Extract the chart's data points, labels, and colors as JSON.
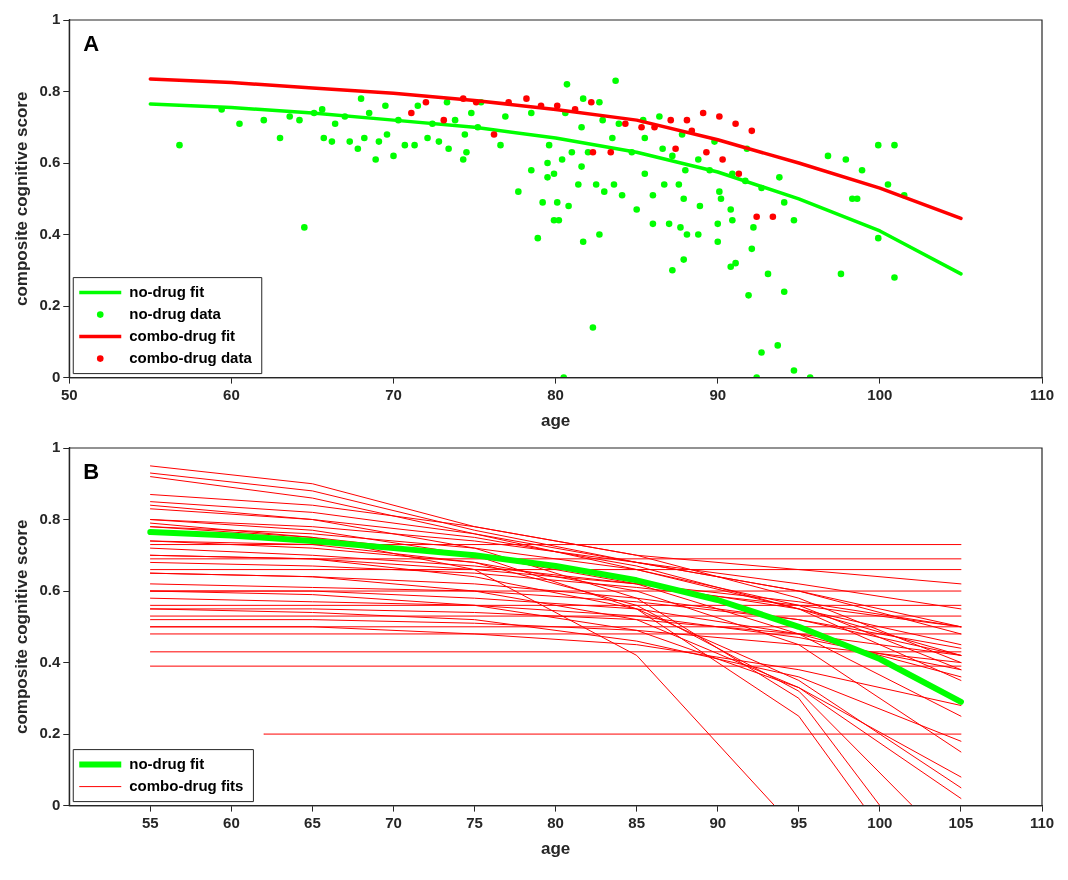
{
  "chart_data": [
    {
      "type": "line",
      "xlabel": "age",
      "ylabel": "composite cognitive score",
      "annotations": [
        "A"
      ],
      "xlim": [
        50,
        110
      ],
      "xticks": [
        50,
        60,
        70,
        80,
        90,
        100,
        110
      ],
      "ylim": [
        0,
        1
      ],
      "yticks": [
        0,
        0.2,
        0.4,
        0.6,
        0.8,
        1
      ],
      "legend": "bottom left",
      "series": [
        {
          "name": "no-drug fit",
          "color": "#00ff00",
          "marker": "none",
          "line_style": "solid",
          "x": [
            55,
            60,
            65,
            70,
            75,
            80,
            85,
            90,
            95,
            100,
            105
          ],
          "values": [
            0.765,
            0.755,
            0.74,
            0.72,
            0.7,
            0.67,
            0.63,
            0.575,
            0.5,
            0.41,
            0.29
          ]
        },
        {
          "name": "no-drug data",
          "type": "scatter",
          "color": "#00ff00",
          "marker": "circle",
          "x": [
            80.7,
            83.7,
            81.7,
            82.7,
            77.7,
            79.2,
            80.1,
            80.8,
            79.9,
            80.2,
            78.9,
            81.7,
            82.7,
            82.3,
            78.5,
            79.5,
            79.9,
            81.4,
            82.5,
            83.0,
            83.6,
            84.1,
            85.0,
            86.0,
            86.0,
            87.0,
            87.7,
            88.1,
            88.8,
            87.2,
            87.9,
            90.0,
            90.8,
            91.1,
            91.9,
            92.1,
            92.2,
            93.1,
            94.1,
            92.7,
            93.7,
            94.7,
            92.4,
            95.7,
            80.5,
            96.8,
            97.9,
            98.9,
            99.9,
            100.9,
            100.5,
            101.5,
            98.3,
            98.6,
            97.6,
            100.9,
            99.9,
            94.7,
            93.8,
            94.1,
            92.7,
            91.7,
            91.8,
            89.8,
            87.8,
            86.4,
            85.4,
            83.9,
            82.9,
            81.6,
            80.6,
            78.5,
            76.9,
            75.4,
            75.2,
            76.6,
            79.6,
            81.0,
            83.5,
            85.5,
            87.2,
            88.8,
            89.5,
            90.9,
            88.0,
            86.6,
            84.7,
            82.0,
            80.4,
            79.5,
            81.6,
            85.5,
            86.7,
            87.6,
            90.1,
            90.2,
            90.8,
            90.9,
            90.0,
            88.9,
            87.9,
            56.8,
            60.5,
            62.0,
            63.0,
            63.6,
            64.2,
            64.5,
            59.4,
            65.1,
            65.6,
            65.7,
            66.2,
            66.4,
            67.0,
            67.3,
            67.8,
            68.0,
            68.2,
            68.5,
            68.9,
            69.1,
            69.5,
            69.6,
            70.0,
            70.3,
            70.7,
            71.3,
            71.5,
            72.1,
            72.4,
            72.8,
            73.4,
            73.3,
            73.8,
            74.3,
            74.4,
            74.5,
            74.8
          ],
          "values": [
            0.82,
            0.83,
            0.78,
            0.77,
            0.52,
            0.49,
            0.49,
            0.48,
            0.44,
            0.44,
            0.39,
            0.38,
            0.4,
            0.14,
            0.58,
            0.56,
            0.57,
            0.54,
            0.54,
            0.52,
            0.54,
            0.51,
            0.47,
            0.51,
            0.43,
            0.43,
            0.42,
            0.4,
            0.4,
            0.3,
            0.33,
            0.38,
            0.31,
            0.32,
            0.23,
            0.36,
            0.42,
            0.29,
            0.24,
            0.07,
            0.09,
            0.02,
            0,
            0,
            0,
            0.62,
            0.61,
            0.58,
            0.65,
            0.65,
            0.54,
            0.51,
            0.5,
            0.5,
            0.29,
            0.28,
            0.39,
            0.44,
            0.56,
            0.49,
            0.53,
            0.55,
            0.64,
            0.66,
            0.68,
            0.73,
            0.72,
            0.71,
            0.72,
            0.7,
            0.74,
            0.74,
            0.73,
            0.77,
            0.7,
            0.65,
            0.65,
            0.63,
            0.67,
            0.67,
            0.62,
            0.61,
            0.58,
            0.57,
            0.58,
            0.64,
            0.63,
            0.63,
            0.61,
            0.6,
            0.59,
            0.57,
            0.54,
            0.54,
            0.52,
            0.5,
            0.47,
            0.44,
            0.43,
            0.48,
            0.5,
            0.65,
            0.71,
            0.72,
            0.67,
            0.73,
            0.72,
            0.42,
            0.75,
            0.74,
            0.75,
            0.67,
            0.66,
            0.71,
            0.73,
            0.66,
            0.64,
            0.78,
            0.67,
            0.74,
            0.61,
            0.66,
            0.76,
            0.68,
            0.62,
            0.72,
            0.65,
            0.65,
            0.76,
            0.67,
            0.71,
            0.66,
            0.64,
            0.77,
            0.72,
            0.61,
            0.68,
            0.63,
            0.74
          ]
        },
        {
          "name": "combo-drug fit",
          "color": "#ff0000",
          "marker": "none",
          "line_style": "solid",
          "x": [
            55,
            60,
            65,
            70,
            75,
            80,
            85,
            90,
            95,
            100,
            105
          ],
          "values": [
            0.835,
            0.825,
            0.81,
            0.795,
            0.775,
            0.75,
            0.72,
            0.665,
            0.6,
            0.53,
            0.445
          ]
        },
        {
          "name": "combo-drug data",
          "type": "scatter",
          "color": "#ff0000",
          "marker": "circle",
          "x": [
            75.1,
            77.1,
            78.2,
            79.1,
            80.1,
            81.2,
            82.2,
            76.2,
            82.3,
            83.4,
            84.3,
            85.3,
            86.1,
            87.1,
            88.1,
            88.4,
            87.4,
            89.1,
            90.1,
            91.1,
            92.1,
            89.3,
            90.3,
            91.3,
            92.4,
            93.4,
            71.1,
            73.1,
            72.0,
            74.3
          ],
          "values": [
            0.77,
            0.77,
            0.78,
            0.76,
            0.76,
            0.75,
            0.77,
            0.68,
            0.63,
            0.63,
            0.71,
            0.7,
            0.7,
            0.72,
            0.72,
            0.69,
            0.64,
            0.74,
            0.73,
            0.71,
            0.69,
            0.63,
            0.61,
            0.57,
            0.45,
            0.45,
            0.74,
            0.72,
            0.77,
            0.78
          ]
        }
      ]
    },
    {
      "type": "line",
      "xlabel": "age",
      "ylabel": "composite cognitive score",
      "annotations": [
        "B"
      ],
      "xlim": [
        50,
        110
      ],
      "xticks": [
        55,
        60,
        65,
        70,
        75,
        80,
        85,
        90,
        95,
        100,
        105,
        110
      ],
      "ylim": [
        0,
        1
      ],
      "yticks": [
        0,
        0.2,
        0.4,
        0.6,
        0.8,
        1
      ],
      "legend": "bottom left",
      "series": [
        {
          "name": "no-drug fit",
          "color": "#00ff00",
          "marker": "none",
          "line_style": "solid",
          "x": [
            55,
            60,
            65,
            70,
            75,
            80,
            85,
            90,
            95,
            100,
            105
          ],
          "values": [
            0.765,
            0.755,
            0.74,
            0.72,
            0.7,
            0.67,
            0.63,
            0.575,
            0.5,
            0.41,
            0.29
          ]
        },
        {
          "name": "combo-drug fits",
          "color": "#ff0000",
          "marker": "none",
          "line_style": "solid",
          "x": [
            55,
            65,
            75,
            85,
            95,
            105
          ],
          "values": [
            0.87,
            0.84,
            0.78,
            0.7,
            0.58,
            0.4
          ]
        },
        {
          "color": "#ff0000",
          "marker": "none",
          "line_style": "solid",
          "x": [
            55,
            105
          ],
          "values": [
            0.73,
            0.73
          ]
        },
        {
          "color": "#ff0000",
          "marker": "none",
          "line_style": "solid",
          "x": [
            55,
            105
          ],
          "values": [
            0.69,
            0.69
          ]
        },
        {
          "color": "#ff0000",
          "marker": "none",
          "line_style": "solid",
          "x": [
            55,
            105
          ],
          "values": [
            0.66,
            0.66
          ]
        },
        {
          "color": "#ff0000",
          "marker": "none",
          "line_style": "solid",
          "x": [
            55,
            105
          ],
          "values": [
            0.6,
            0.6
          ]
        },
        {
          "color": "#ff0000",
          "marker": "none",
          "line_style": "solid",
          "x": [
            55,
            105
          ],
          "values": [
            0.56,
            0.56
          ]
        },
        {
          "color": "#ff0000",
          "marker": "none",
          "line_style": "solid",
          "x": [
            55,
            105
          ],
          "values": [
            0.53,
            0.53
          ]
        },
        {
          "color": "#ff0000",
          "marker": "none",
          "line_style": "solid",
          "x": [
            55,
            105
          ],
          "values": [
            0.5,
            0.5
          ]
        },
        {
          "color": "#ff0000",
          "marker": "none",
          "line_style": "solid",
          "x": [
            55,
            105
          ],
          "values": [
            0.48,
            0.48
          ]
        },
        {
          "color": "#ff0000",
          "marker": "none",
          "line_style": "solid",
          "x": [
            55,
            105
          ],
          "values": [
            0.43,
            0.43
          ]
        },
        {
          "color": "#ff0000",
          "marker": "none",
          "line_style": "solid",
          "x": [
            55,
            105
          ],
          "values": [
            0.39,
            0.39
          ]
        },
        {
          "color": "#ff0000",
          "marker": "none",
          "line_style": "solid",
          "x": [
            62,
            105
          ],
          "values": [
            0.2,
            0.2
          ]
        },
        {
          "color": "#ff0000",
          "marker": "none",
          "line_style": "solid",
          "x": [
            55,
            65,
            75,
            85,
            95,
            105
          ],
          "values": [
            0.95,
            0.9,
            0.78,
            0.7,
            0.66,
            0.62
          ]
        },
        {
          "color": "#ff0000",
          "marker": "none",
          "line_style": "solid",
          "x": [
            55,
            65,
            75,
            85,
            95,
            105
          ],
          "values": [
            0.93,
            0.88,
            0.77,
            0.68,
            0.6,
            0.5
          ]
        },
        {
          "color": "#ff0000",
          "marker": "none",
          "line_style": "solid",
          "x": [
            55,
            65,
            75,
            85,
            95,
            105
          ],
          "values": [
            0.92,
            0.86,
            0.76,
            0.66,
            0.55,
            0.42
          ]
        },
        {
          "color": "#ff0000",
          "marker": "none",
          "line_style": "solid",
          "x": [
            55,
            65,
            75,
            85,
            95,
            105
          ],
          "values": [
            0.85,
            0.82,
            0.76,
            0.68,
            0.6,
            0.48
          ]
        },
        {
          "color": "#ff0000",
          "marker": "none",
          "line_style": "solid",
          "x": [
            55,
            65,
            75,
            85,
            95,
            105
          ],
          "values": [
            0.83,
            0.8,
            0.75,
            0.67,
            0.55,
            0.35
          ]
        },
        {
          "color": "#ff0000",
          "marker": "none",
          "line_style": "solid",
          "x": [
            55,
            65,
            75,
            85,
            95,
            105
          ],
          "values": [
            0.8,
            0.78,
            0.74,
            0.68,
            0.62,
            0.55
          ]
        },
        {
          "color": "#ff0000",
          "marker": "none",
          "line_style": "solid",
          "x": [
            55,
            65,
            75,
            85,
            95,
            105
          ],
          "values": [
            0.78,
            0.76,
            0.72,
            0.66,
            0.56,
            0.38
          ]
        },
        {
          "color": "#ff0000",
          "marker": "none",
          "line_style": "solid",
          "x": [
            55,
            65,
            75,
            85,
            95,
            105
          ],
          "values": [
            0.79,
            0.75,
            0.7,
            0.62,
            0.48,
            0.25
          ]
        },
        {
          "color": "#ff0000",
          "marker": "none",
          "line_style": "solid",
          "x": [
            55,
            65,
            75,
            85,
            95,
            105
          ],
          "values": [
            0.74,
            0.72,
            0.68,
            0.6,
            0.45,
            0.15
          ]
        },
        {
          "color": "#ff0000",
          "marker": "none",
          "line_style": "solid",
          "x": [
            55,
            65,
            75,
            85,
            95,
            105
          ],
          "values": [
            0.72,
            0.7,
            0.67,
            0.62,
            0.55,
            0.45
          ]
        },
        {
          "color": "#ff0000",
          "marker": "none",
          "line_style": "solid",
          "x": [
            55,
            65,
            75,
            85,
            95,
            105
          ],
          "values": [
            0.7,
            0.69,
            0.66,
            0.62,
            0.57,
            0.5
          ]
        },
        {
          "color": "#ff0000",
          "marker": "none",
          "line_style": "solid",
          "x": [
            55,
            65,
            75,
            85,
            95,
            105
          ],
          "values": [
            0.68,
            0.67,
            0.65,
            0.61,
            0.56,
            0.5
          ]
        },
        {
          "color": "#ff0000",
          "marker": "none",
          "line_style": "solid",
          "x": [
            55,
            65,
            75,
            85,
            95,
            105
          ],
          "values": [
            0.65,
            0.64,
            0.62,
            0.58,
            0.52,
            0.42
          ]
        },
        {
          "color": "#ff0000",
          "marker": "none",
          "line_style": "solid",
          "x": [
            55,
            65,
            75,
            85,
            95,
            105
          ],
          "values": [
            0.62,
            0.61,
            0.6,
            0.57,
            0.52,
            0.44
          ]
        },
        {
          "color": "#ff0000",
          "marker": "none",
          "line_style": "solid",
          "x": [
            55,
            65,
            75,
            85,
            95,
            105
          ],
          "values": [
            0.6,
            0.6,
            0.58,
            0.55,
            0.48,
            0.36
          ]
        },
        {
          "color": "#ff0000",
          "marker": "none",
          "line_style": "solid",
          "x": [
            55,
            65,
            75,
            85,
            95,
            105
          ],
          "values": [
            0.58,
            0.57,
            0.56,
            0.53,
            0.47,
            0.38
          ]
        },
        {
          "color": "#ff0000",
          "marker": "none",
          "line_style": "solid",
          "x": [
            55,
            65,
            75,
            85,
            95,
            105
          ],
          "values": [
            0.55,
            0.55,
            0.54,
            0.52,
            0.48,
            0.42
          ]
        },
        {
          "color": "#ff0000",
          "marker": "none",
          "line_style": "solid",
          "x": [
            55,
            65,
            75,
            85,
            95,
            105
          ],
          "values": [
            0.52,
            0.52,
            0.51,
            0.49,
            0.45,
            0.4
          ]
        },
        {
          "color": "#ff0000",
          "marker": "none",
          "line_style": "solid",
          "x": [
            55,
            65,
            75,
            85,
            93.5
          ],
          "values": [
            0.78,
            0.75,
            0.66,
            0.42,
            0
          ]
        },
        {
          "color": "#ff0000",
          "marker": "none",
          "line_style": "solid",
          "x": [
            55,
            65,
            75,
            85,
            95,
            99
          ],
          "values": [
            0.8,
            0.77,
            0.7,
            0.55,
            0.25,
            0
          ]
        },
        {
          "color": "#ff0000",
          "marker": "none",
          "line_style": "solid",
          "x": [
            55,
            65,
            75,
            85,
            95,
            102
          ],
          "values": [
            0.74,
            0.73,
            0.68,
            0.56,
            0.32,
            0
          ]
        },
        {
          "color": "#ff0000",
          "marker": "none",
          "line_style": "solid",
          "x": [
            55,
            65,
            75,
            85,
            95,
            100
          ],
          "values": [
            0.84,
            0.8,
            0.72,
            0.58,
            0.3,
            0
          ]
        },
        {
          "color": "#ff0000",
          "marker": "none",
          "line_style": "solid",
          "x": [
            55,
            65,
            75,
            85,
            95,
            105
          ],
          "values": [
            0.7,
            0.69,
            0.64,
            0.55,
            0.35,
            0.05
          ]
        },
        {
          "color": "#ff0000",
          "marker": "none",
          "line_style": "solid",
          "x": [
            55,
            65,
            75,
            85,
            95,
            105
          ],
          "values": [
            0.65,
            0.64,
            0.6,
            0.52,
            0.33,
            0.02
          ]
        },
        {
          "color": "#ff0000",
          "marker": "none",
          "line_style": "solid",
          "x": [
            55,
            65,
            75,
            85,
            95,
            105
          ],
          "values": [
            0.6,
            0.59,
            0.56,
            0.49,
            0.33,
            0.08
          ]
        },
        {
          "color": "#ff0000",
          "marker": "none",
          "line_style": "solid",
          "x": [
            55,
            65,
            75,
            85,
            95,
            105
          ],
          "values": [
            0.55,
            0.54,
            0.52,
            0.46,
            0.36,
            0.18
          ]
        },
        {
          "color": "#ff0000",
          "marker": "none",
          "line_style": "solid",
          "x": [
            55,
            65,
            75,
            85,
            95,
            105
          ],
          "values": [
            0.5,
            0.5,
            0.48,
            0.45,
            0.38,
            0.28
          ]
        }
      ]
    }
  ]
}
